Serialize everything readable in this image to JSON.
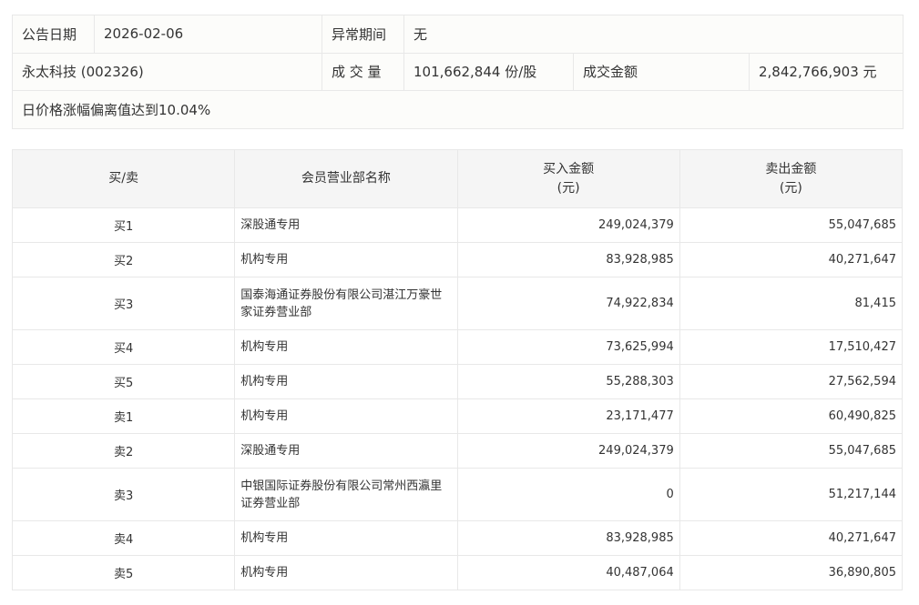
{
  "info": {
    "announce_date_label": "公告日期",
    "announce_date": "2026-02-06",
    "abnormal_period_label": "异常期间",
    "abnormal_period": "无",
    "stock": "永太科技 (002326)",
    "volume_label": "成 交 量",
    "volume": "101,662,844 份/股",
    "turnover_label": "成交金额",
    "turnover": "2,842,766,903 元",
    "reason": "日价格涨幅偏离值达到10.04%"
  },
  "table": {
    "headers": [
      "买/卖",
      "会员营业部名称",
      "买入金额\n(元)",
      "卖出金额\n(元)"
    ],
    "header_buy_1": "买入金额",
    "header_buy_2": "(元)",
    "header_sell_1": "卖出金额",
    "header_sell_2": "(元)",
    "rows": [
      {
        "side": "买1",
        "name": "深股通专用",
        "buy": "249,024,379",
        "sell": "55,047,685"
      },
      {
        "side": "买2",
        "name": "机构专用",
        "buy": "83,928,985",
        "sell": "40,271,647"
      },
      {
        "side": "买3",
        "name": "国泰海通证券股份有限公司湛江万豪世家证券营业部",
        "buy": "74,922,834",
        "sell": "81,415"
      },
      {
        "side": "买4",
        "name": "机构专用",
        "buy": "73,625,994",
        "sell": "17,510,427"
      },
      {
        "side": "买5",
        "name": "机构专用",
        "buy": "55,288,303",
        "sell": "27,562,594"
      },
      {
        "side": "卖1",
        "name": "机构专用",
        "buy": "23,171,477",
        "sell": "60,490,825"
      },
      {
        "side": "卖2",
        "name": "深股通专用",
        "buy": "249,024,379",
        "sell": "55,047,685"
      },
      {
        "side": "卖3",
        "name": "中银国际证券股份有限公司常州西瀛里证券营业部",
        "buy": "0",
        "sell": "51,217,144"
      },
      {
        "side": "卖4",
        "name": "机构专用",
        "buy": "83,928,985",
        "sell": "40,271,647"
      },
      {
        "side": "卖5",
        "name": "机构专用",
        "buy": "40,487,064",
        "sell": "36,890,805"
      }
    ]
  }
}
